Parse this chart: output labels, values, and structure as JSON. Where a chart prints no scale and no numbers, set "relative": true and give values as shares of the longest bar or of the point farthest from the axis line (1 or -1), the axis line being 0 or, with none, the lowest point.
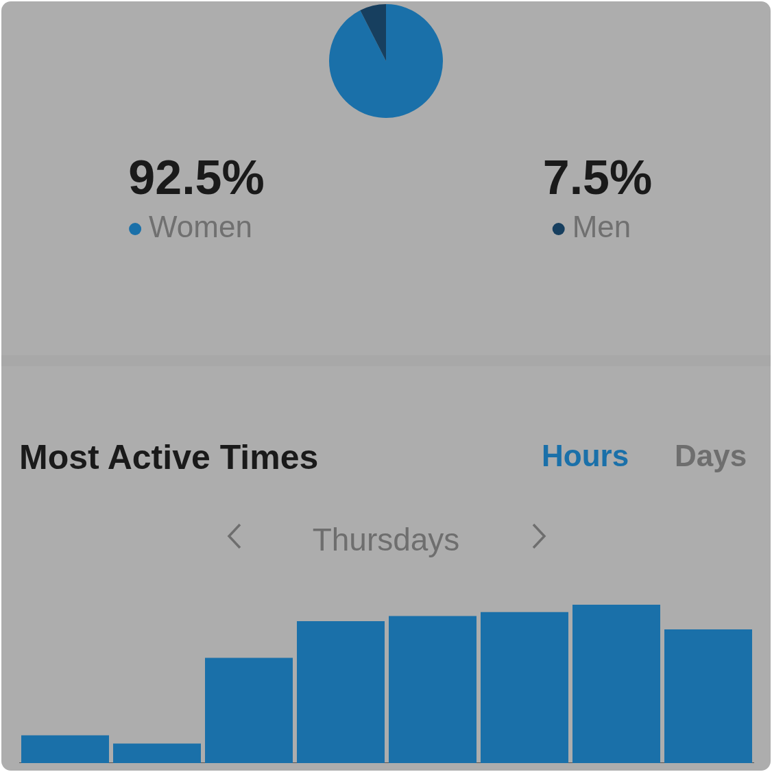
{
  "chart_data": [
    {
      "type": "pie",
      "categories": [
        "Women",
        "Men"
      ],
      "values": [
        92.5,
        7.5
      ],
      "colors": [
        "#1a70a9",
        "#173f5f"
      ],
      "value_labels": [
        "92.5%",
        "7.5%"
      ],
      "legend": "bottom"
    },
    {
      "type": "bar",
      "title": "Most Active Times",
      "subtitle": "Thursdays",
      "annotations": [
        "Hours",
        "Days"
      ],
      "relative": true,
      "categories": [
        null,
        null,
        null,
        null,
        null,
        null,
        null,
        null
      ],
      "values": [
        0.175,
        0.123,
        0.664,
        0.896,
        0.929,
        0.953,
        1,
        0.844
      ],
      "color": "#1a70a9"
    }
  ]
}
